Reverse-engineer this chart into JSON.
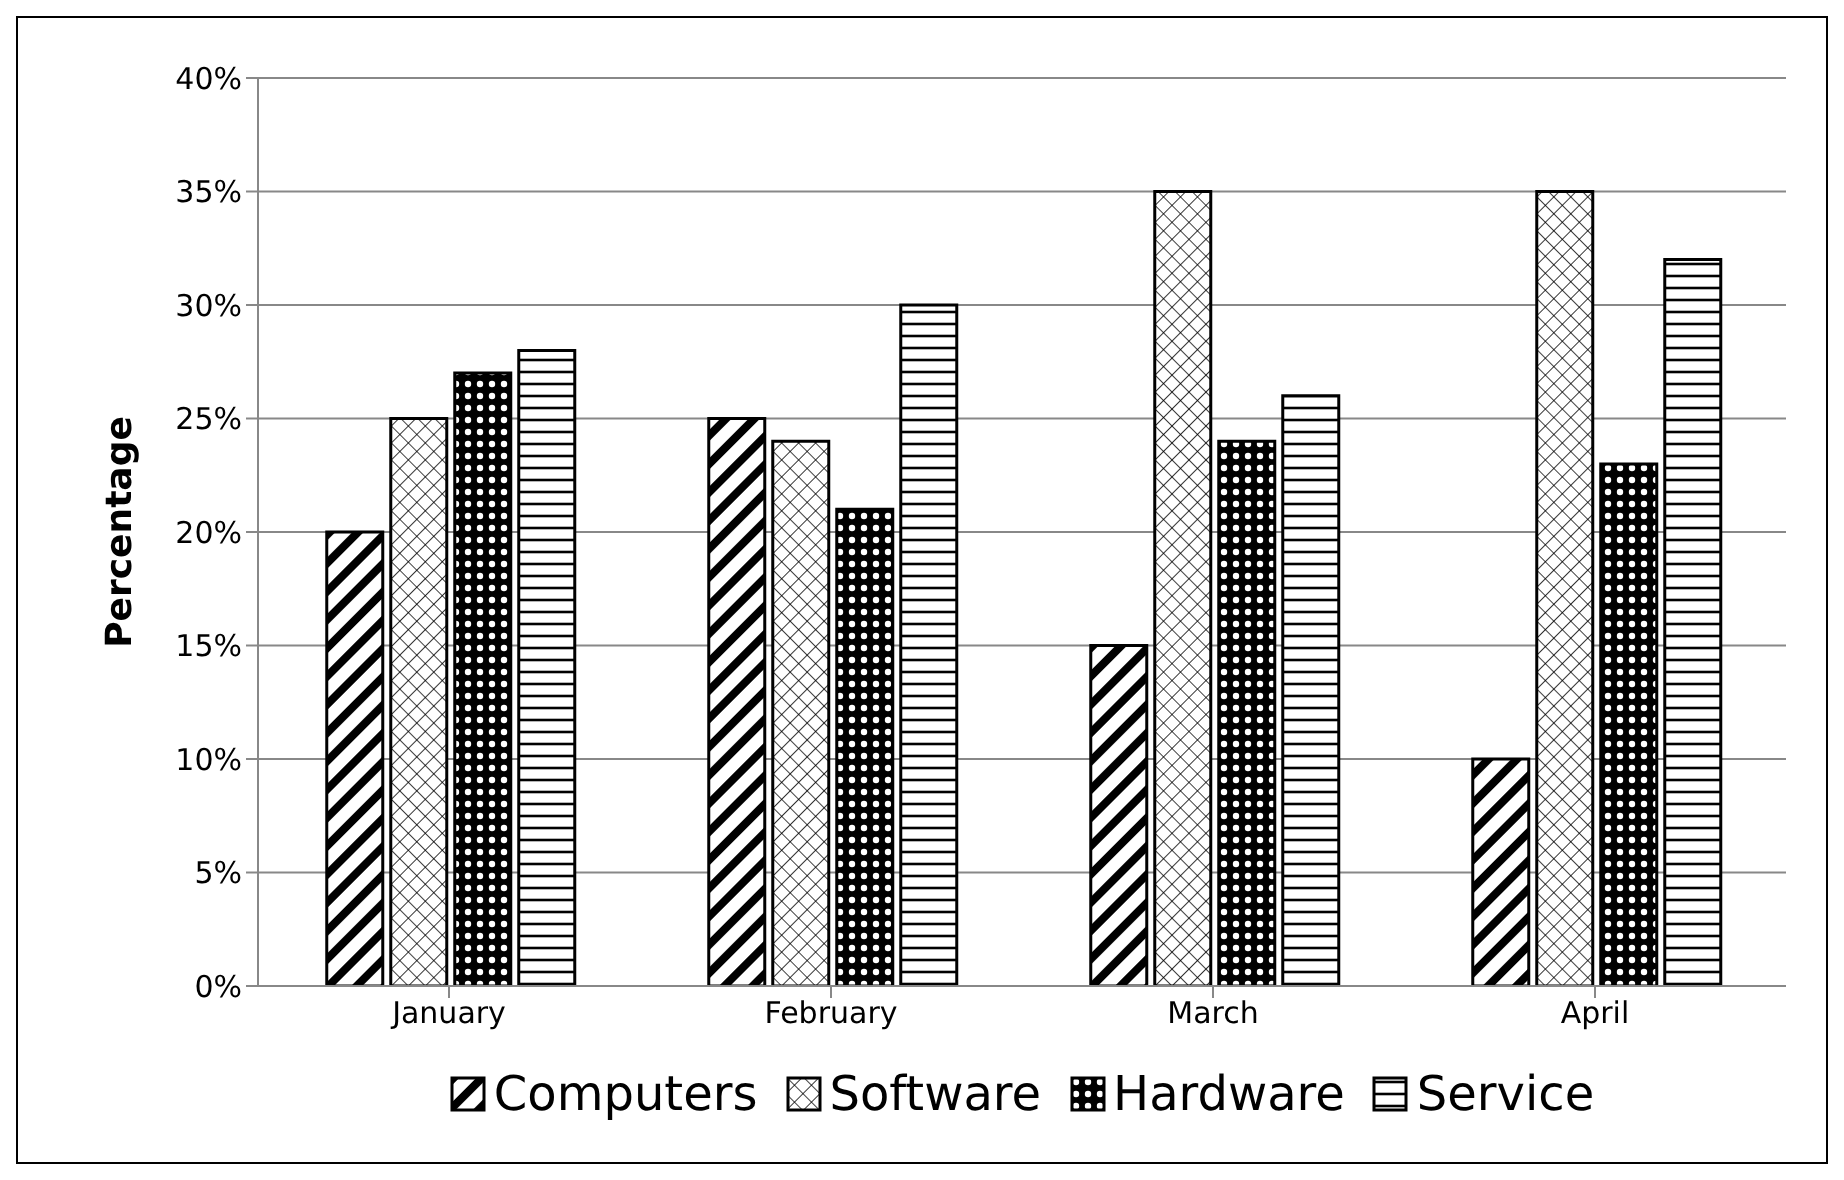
{
  "chart_data": {
    "type": "bar",
    "ylabel": "Percentage",
    "categories": [
      "January",
      "February",
      "March",
      "April"
    ],
    "series": [
      {
        "name": "Computers",
        "color": "#000000",
        "values": [
          20,
          25,
          15,
          10
        ]
      },
      {
        "name": "Software",
        "color": "#000000",
        "values": [
          25,
          24,
          35,
          35
        ]
      },
      {
        "name": "Hardware",
        "color": "#000000",
        "values": [
          27,
          21,
          24,
          23
        ]
      },
      {
        "name": "Service",
        "color": "#000000",
        "values": [
          28,
          30,
          26,
          32
        ]
      }
    ],
    "ylim": [
      0,
      40
    ],
    "yticks": [
      {
        "value": 0,
        "label": "0%"
      },
      {
        "value": 5,
        "label": "5%"
      },
      {
        "value": 10,
        "label": "10%"
      },
      {
        "value": 15,
        "label": "15%"
      },
      {
        "value": 20,
        "label": "20%"
      },
      {
        "value": 25,
        "label": "25%"
      },
      {
        "value": 30,
        "label": "30%"
      },
      {
        "value": 35,
        "label": "35%"
      },
      {
        "value": 40,
        "label": "40%"
      }
    ],
    "grid": "y",
    "legend": "bottom"
  }
}
